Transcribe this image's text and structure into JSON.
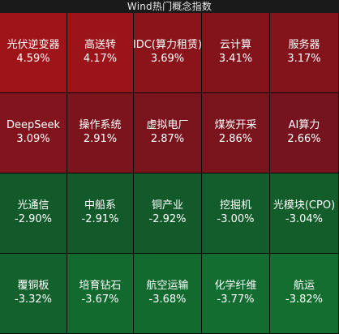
{
  "title": "Wind热门概念指数",
  "tiles": [
    {
      "name": "光伏逆变器",
      "value": "4.59%",
      "color": "#9e1418"
    },
    {
      "name": "高送转",
      "value": "4.17%",
      "color": "#9a1419"
    },
    {
      "name": "IDC(算力租赁)",
      "value": "3.69%",
      "color": "#8b141b"
    },
    {
      "name": "云计算",
      "value": "3.41%",
      "color": "#84141c"
    },
    {
      "name": "服务器",
      "value": "3.17%",
      "color": "#84141c"
    },
    {
      "name": "DeepSeek",
      "value": "3.09%",
      "color": "#81141c"
    },
    {
      "name": "操作系统",
      "value": "2.91%",
      "color": "#7b141d"
    },
    {
      "name": "虚拟电厂",
      "value": "2.87%",
      "color": "#79141d"
    },
    {
      "name": "煤炭开采",
      "value": "2.86%",
      "color": "#79141d"
    },
    {
      "name": "AI算力",
      "value": "2.66%",
      "color": "#75141e"
    },
    {
      "name": "光通信",
      "value": "-2.90%",
      "color": "#135a2a"
    },
    {
      "name": "中船系",
      "value": "-2.91%",
      "color": "#135a2a"
    },
    {
      "name": "铜产业",
      "value": "-2.92%",
      "color": "#135a2a"
    },
    {
      "name": "挖掘机",
      "value": "-3.00%",
      "color": "#135c2b"
    },
    {
      "name": "光模块(CPO)",
      "value": "-3.04%",
      "color": "#135d2b"
    },
    {
      "name": "覆铜板",
      "value": "-3.32%",
      "color": "#13622d"
    },
    {
      "name": "培育钻石",
      "value": "-3.67%",
      "color": "#136a2f"
    },
    {
      "name": "航空运输",
      "value": "-3.68%",
      "color": "#136a2f"
    },
    {
      "name": "化学纤维",
      "value": "-3.77%",
      "color": "#136c30"
    },
    {
      "name": "航运",
      "value": "-3.82%",
      "color": "#136e30"
    }
  ]
}
